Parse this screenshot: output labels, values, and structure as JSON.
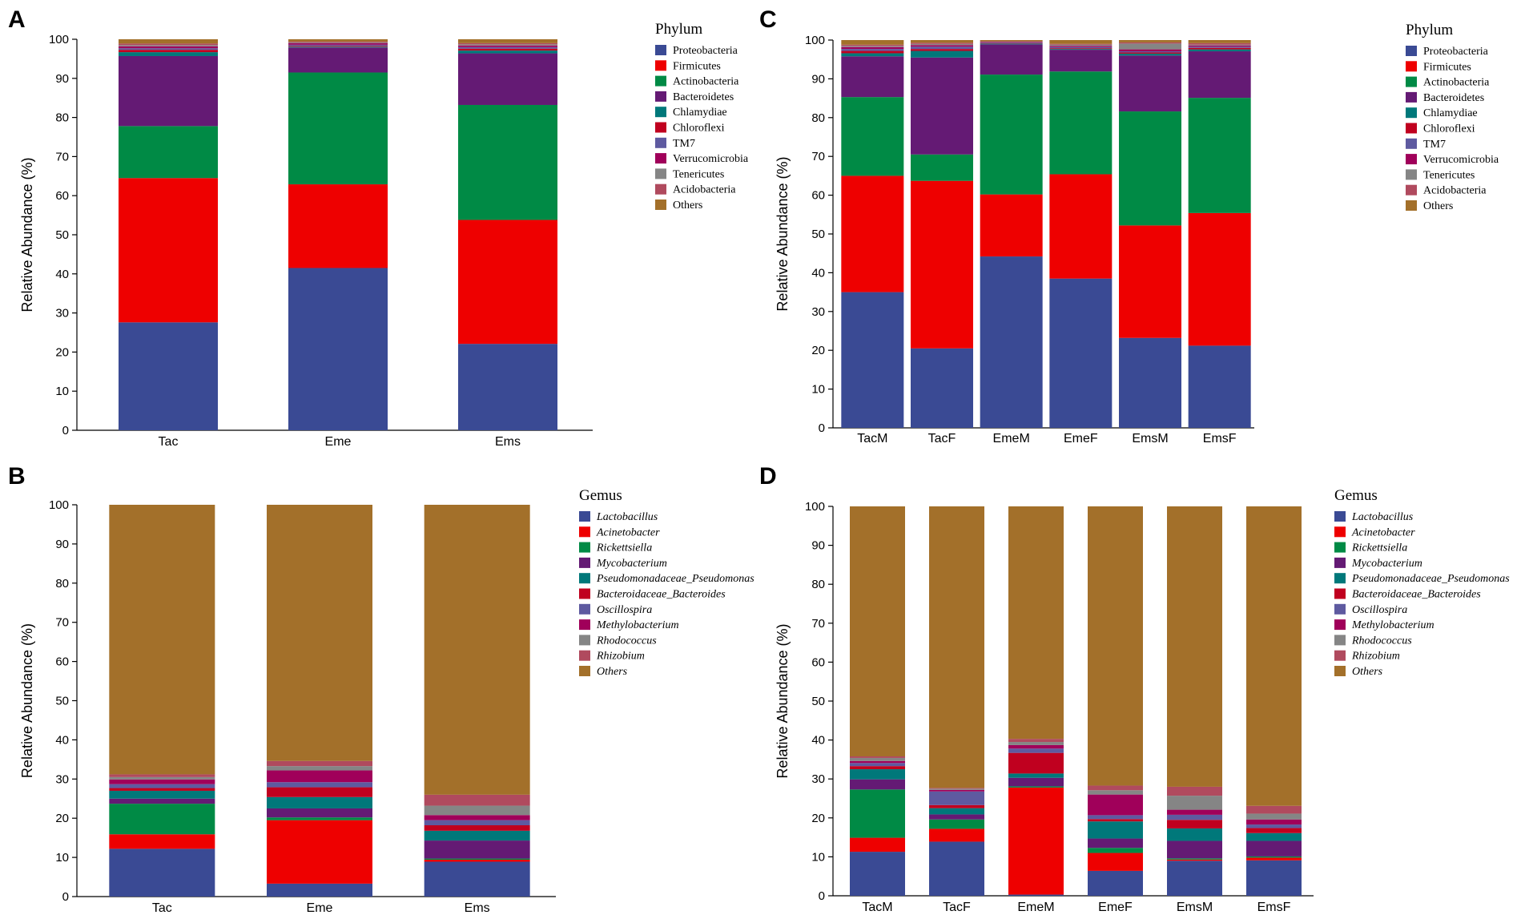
{
  "palette": {
    "Proteobacteria": "#3a4a94",
    "Firmicutes": "#ee0000",
    "Actinobacteria": "#008a45",
    "Bacteroidetes": "#641a74",
    "Chlamydiae": "#00787a",
    "Chloroflexi": "#c0001f",
    "TM7": "#5e5aa0",
    "Verrucomicrobia": "#a0005a",
    "Tenericutes": "#858585",
    "Acidobacteria": "#b04a5e",
    "Others": "#a3702a",
    "Lactobacillus": "#3a4a94",
    "Acinetobacter": "#ee0000",
    "Rickettsiella": "#008a45",
    "Mycobacterium": "#641a74",
    "Pseudomonadaceae_Pseudomonas": "#00787a",
    "Bacteroidaceae_Bacteroides": "#c0001f",
    "Oscillospira": "#5e5aa0",
    "Methylobacterium": "#a0005a",
    "Rhodococcus": "#858585",
    "Rhizobium": "#b04a5e"
  },
  "chart_data": [
    {
      "panel": "A",
      "type": "bar",
      "stacked": true,
      "ylabel": "Relative Abundance (%)",
      "ylim": [
        0,
        100
      ],
      "yticks": [
        "0",
        "10",
        "20",
        "30",
        "40",
        "50",
        "60",
        "70",
        "80",
        "90",
        "100"
      ],
      "legend_title": "Phylum",
      "legend_italic": false,
      "categories": [
        "Tac",
        "Eme",
        "Ems"
      ],
      "series": [
        {
          "name": "Proteobacteria",
          "values": [
            27.6,
            41.5,
            22.1
          ]
        },
        {
          "name": "Firmicutes",
          "values": [
            36.9,
            21.4,
            31.7
          ]
        },
        {
          "name": "Actinobacteria",
          "values": [
            13.3,
            28.6,
            29.4
          ]
        },
        {
          "name": "Bacteroidetes",
          "values": [
            17.9,
            6.4,
            13.2
          ]
        },
        {
          "name": "Chlamydiae",
          "values": [
            1.0,
            0.2,
            0.7
          ]
        },
        {
          "name": "Chloroflexi",
          "values": [
            0.6,
            0.2,
            0.5
          ]
        },
        {
          "name": "TM7",
          "values": [
            0.4,
            0.3,
            0.4
          ]
        },
        {
          "name": "Verrucomicrobia",
          "values": [
            0.5,
            0.4,
            0.4
          ]
        },
        {
          "name": "Tenericutes",
          "values": [
            0.3,
            0.2,
            0.3
          ]
        },
        {
          "name": "Acidobacteria",
          "values": [
            0.4,
            0.2,
            0.3
          ]
        },
        {
          "name": "Others",
          "values": [
            1.1,
            0.6,
            1.0
          ]
        }
      ]
    },
    {
      "panel": "B",
      "type": "bar",
      "stacked": true,
      "ylabel": "Relative Abundance (%)",
      "ylim": [
        0,
        100
      ],
      "yticks": [
        "0",
        "10",
        "20",
        "30",
        "40",
        "50",
        "60",
        "70",
        "80",
        "90",
        "100"
      ],
      "legend_title": "Gemus",
      "legend_italic": true,
      "categories": [
        "Tac",
        "Eme",
        "Ems"
      ],
      "series": [
        {
          "name": "Lactobacillus",
          "values": [
            12.2,
            3.3,
            8.9
          ]
        },
        {
          "name": "Acinetobacter",
          "values": [
            3.7,
            16.2,
            0.5
          ]
        },
        {
          "name": "Rickettsiella",
          "values": [
            7.8,
            0.7,
            0.3
          ]
        },
        {
          "name": "Mycobacterium",
          "values": [
            1.3,
            2.3,
            4.6
          ]
        },
        {
          "name": "Pseudomonadaceae_Pseudomonas",
          "values": [
            2.0,
            2.9,
            2.5
          ]
        },
        {
          "name": "Bacteroidaceae_Bacteroides",
          "values": [
            0.7,
            2.5,
            1.4
          ]
        },
        {
          "name": "Oscillospira",
          "values": [
            1.0,
            1.3,
            1.3
          ]
        },
        {
          "name": "Methylobacterium",
          "values": [
            1.2,
            3.0,
            1.3
          ]
        },
        {
          "name": "Rhodococcus",
          "values": [
            0.6,
            1.1,
            2.4
          ]
        },
        {
          "name": "Rhizobium",
          "values": [
            0.7,
            1.3,
            2.8
          ]
        },
        {
          "name": "Others",
          "values": [
            68.8,
            65.4,
            74.0
          ]
        }
      ]
    },
    {
      "panel": "C",
      "type": "bar",
      "stacked": true,
      "ylabel": "Relative Abundance (%)",
      "ylim": [
        0,
        100
      ],
      "yticks": [
        "0",
        "10",
        "20",
        "30",
        "40",
        "50",
        "60",
        "70",
        "80",
        "90",
        "100"
      ],
      "legend_title": "Phylum",
      "legend_italic": false,
      "categories": [
        "TacM",
        "TacF",
        "EmeM",
        "EmeF",
        "EmsM",
        "EmsF"
      ],
      "series": [
        {
          "name": "Proteobacteria",
          "values": [
            35.0,
            20.5,
            44.2,
            38.5,
            23.2,
            21.2
          ]
        },
        {
          "name": "Firmicutes",
          "values": [
            30.0,
            43.2,
            16.0,
            26.9,
            29.0,
            34.2
          ]
        },
        {
          "name": "Actinobacteria",
          "values": [
            20.3,
            6.8,
            30.9,
            26.5,
            29.4,
            29.7
          ]
        },
        {
          "name": "Bacteroidetes",
          "values": [
            10.5,
            25.0,
            7.8,
            5.6,
            14.4,
            12.0
          ]
        },
        {
          "name": "Chlamydiae",
          "values": [
            0.8,
            1.7,
            0.2,
            0.2,
            0.5,
            0.5
          ]
        },
        {
          "name": "Chloroflexi",
          "values": [
            0.6,
            0.5,
            0.1,
            0.2,
            0.3,
            0.4
          ]
        },
        {
          "name": "TM7",
          "values": [
            0.5,
            0.6,
            0.1,
            0.3,
            0.3,
            0.3
          ]
        },
        {
          "name": "Verrucomicrobia",
          "values": [
            0.5,
            0.4,
            0.2,
            0.3,
            0.5,
            0.3
          ]
        },
        {
          "name": "Tenericutes",
          "values": [
            0.3,
            0.3,
            0.1,
            0.3,
            1.5,
            0.2
          ]
        },
        {
          "name": "Acidobacteria",
          "values": [
            0.3,
            0.3,
            0.1,
            0.2,
            0.3,
            0.4
          ]
        },
        {
          "name": "Others",
          "values": [
            1.2,
            0.7,
            0.3,
            1.0,
            0.6,
            0.8
          ]
        }
      ]
    },
    {
      "panel": "D",
      "type": "bar",
      "stacked": true,
      "ylabel": "Relative Abundance (%)",
      "ylim": [
        0,
        100
      ],
      "yticks": [
        "0",
        "10",
        "20",
        "30",
        "40",
        "50",
        "60",
        "70",
        "80",
        "90",
        "100"
      ],
      "legend_title": "Gemus",
      "legend_italic": true,
      "categories": [
        "TacM",
        "TacF",
        "EmeM",
        "EmeF",
        "EmsM",
        "EmsF"
      ],
      "series": [
        {
          "name": "Lactobacillus",
          "values": [
            11.3,
            13.9,
            0.3,
            6.4,
            9.0,
            9.1
          ]
        },
        {
          "name": "Acinetobacter",
          "values": [
            3.6,
            3.3,
            27.5,
            4.6,
            0.3,
            0.7
          ]
        },
        {
          "name": "Rickettsiella",
          "values": [
            12.4,
            2.4,
            0.3,
            1.3,
            0.3,
            0.3
          ]
        },
        {
          "name": "Mycobacterium",
          "values": [
            2.6,
            1.3,
            2.2,
            2.4,
            4.5,
            4.0
          ]
        },
        {
          "name": "Pseudomonadaceae_Pseudomonas",
          "values": [
            2.6,
            1.6,
            1.1,
            4.4,
            3.2,
            2.0
          ]
        },
        {
          "name": "Bacteroidaceae_Bacteroides",
          "values": [
            0.8,
            0.8,
            5.3,
            0.6,
            2.2,
            1.3
          ]
        },
        {
          "name": "Oscillospira",
          "values": [
            0.8,
            3.5,
            1.1,
            1.0,
            1.3,
            0.9
          ]
        },
        {
          "name": "Methylobacterium",
          "values": [
            0.5,
            0.4,
            0.9,
            5.3,
            1.3,
            1.3
          ]
        },
        {
          "name": "Rhodococcus",
          "values": [
            0.8,
            0.3,
            0.8,
            1.1,
            3.6,
            1.5
          ]
        },
        {
          "name": "Rhizobium",
          "values": [
            0.4,
            0.2,
            0.8,
            1.2,
            2.3,
            2.0
          ]
        },
        {
          "name": "Others",
          "values": [
            64.2,
            72.3,
            59.7,
            71.7,
            72.0,
            76.9
          ]
        }
      ]
    }
  ]
}
